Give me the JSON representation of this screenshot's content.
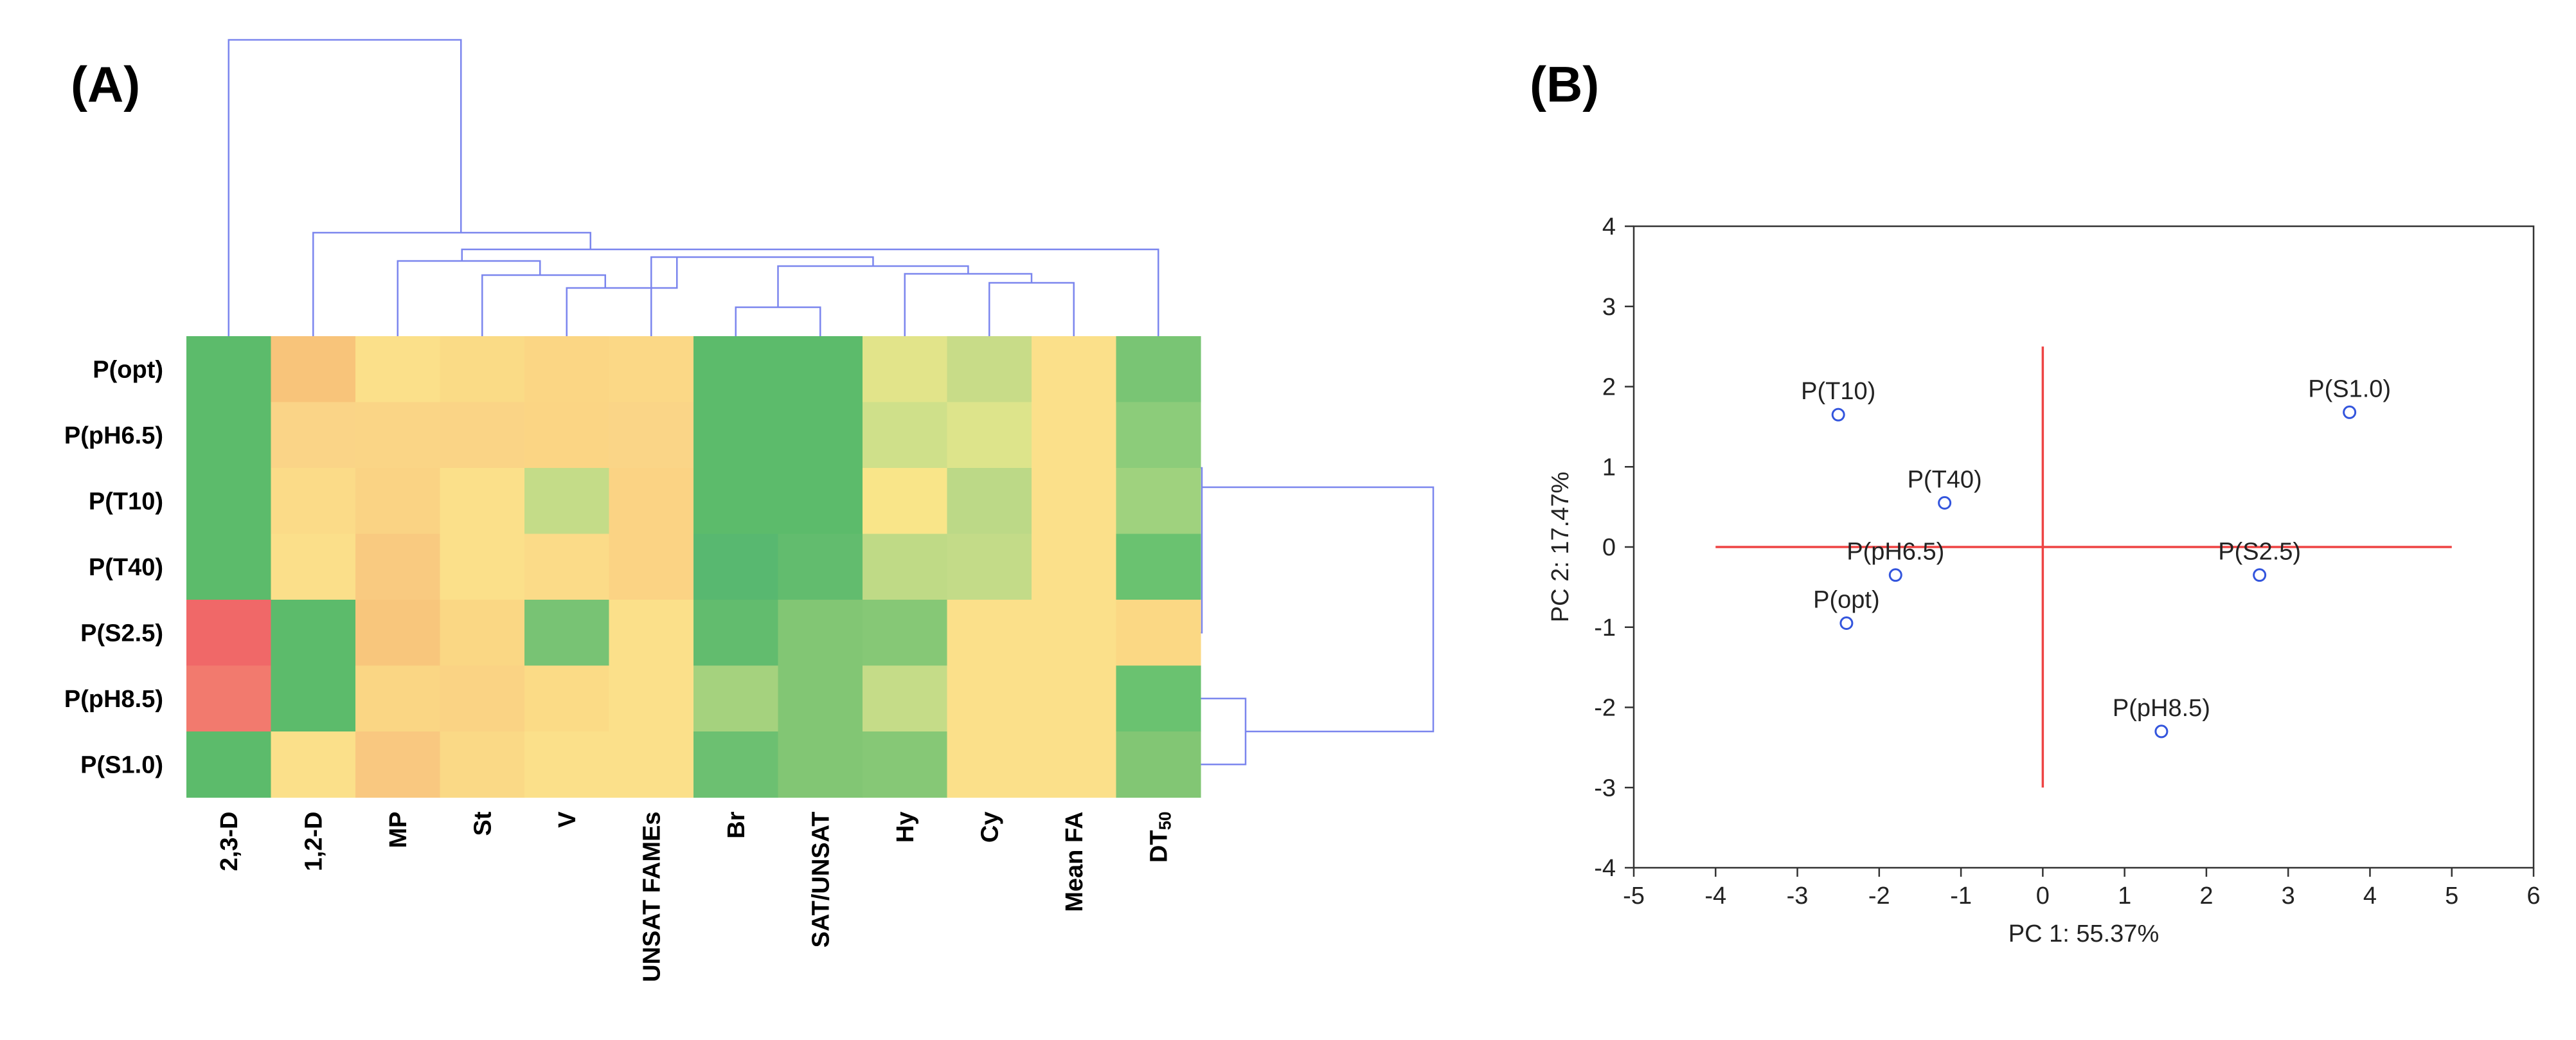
{
  "chart_data": [
    {
      "type": "heatmap",
      "panel_label": "(A)",
      "rows": [
        "P(opt)",
        "P(pH6.5)",
        "P(T10)",
        "P(T40)",
        "P(S2.5)",
        "P(pH8.5)",
        "P(S1.0)"
      ],
      "columns": [
        "2,3-D",
        "1,2-D",
        "MP",
        "St",
        "V",
        "UNSAT FAMEs",
        "Br",
        "SAT/UNSAT",
        "Hy",
        "Cy",
        "Mean FA",
        "DT50"
      ],
      "dt50_main": "DT",
      "dt50_sub": "50",
      "colors": [
        [
          "#5cbb6b",
          "#f8c47a",
          "#fbe08a",
          "#fadb86",
          "#fbd684",
          "#fbd886",
          "#5cbb6b",
          "#5cbb6b",
          "#e2e48a",
          "#c8dc88",
          "#fbe08a",
          "#79c574"
        ],
        [
          "#5cbb6b",
          "#fad487",
          "#fad586",
          "#fad486",
          "#fbd584",
          "#fad587",
          "#5cbb6b",
          "#5cbb6b",
          "#cfe08a",
          "#dde48b",
          "#fbe08a",
          "#8ccc7a"
        ],
        [
          "#5cbb6b",
          "#fbdb88",
          "#fad384",
          "#fbe08a",
          "#c4dc88",
          "#fbd384",
          "#5cbb6b",
          "#5cbb6b",
          "#f9e589",
          "#bcd987",
          "#fbe08a",
          "#9fd27e"
        ],
        [
          "#5cbb6b",
          "#fbdf8a",
          "#f9ca80",
          "#fbe08a",
          "#fbdb88",
          "#fbd384",
          "#58b870",
          "#62bc6e",
          "#bfda86",
          "#c3db88",
          "#fbe08a",
          "#6ac270"
        ],
        [
          "#f06868",
          "#5cbb6b",
          "#f8c67c",
          "#fad784",
          "#78c374",
          "#fbe08a",
          "#62bc6e",
          "#82c674",
          "#86c876",
          "#fbe08a",
          "#fbe08a",
          "#fbd884"
        ],
        [
          "#f27a6e",
          "#5cbb6b",
          "#fad684",
          "#fad384",
          "#fbdb86",
          "#fbe08a",
          "#a5d27e",
          "#82c674",
          "#c5dc88",
          "#fbe08a",
          "#fbe08a",
          "#6ac270"
        ],
        [
          "#5cbb6b",
          "#fbe08a",
          "#f9c880",
          "#fad986",
          "#fbe08a",
          "#fbe08a",
          "#6cc071",
          "#82c674",
          "#86c876",
          "#fbe08a",
          "#fbe08a",
          "#82c674"
        ]
      ]
    },
    {
      "type": "scatter",
      "panel_label": "(B)",
      "xlabel": "PC 1: 55.37%",
      "ylabel": "PC 2: 17.47%",
      "xlim": [
        -5,
        6
      ],
      "ylim": [
        -4,
        4
      ],
      "xticks": [
        -5,
        -4,
        -3,
        -2,
        -1,
        0,
        1,
        2,
        3,
        4,
        5,
        6
      ],
      "yticks": [
        4,
        3,
        2,
        1,
        0,
        -1,
        -2,
        -3,
        -4
      ],
      "axis_lines": {
        "horizontal_x": [
          -4,
          5
        ],
        "vertical_y": [
          -3,
          2.5
        ]
      },
      "points": [
        {
          "label": "P(T10)",
          "x": -2.5,
          "y": 1.65
        },
        {
          "label": "P(S1.0)",
          "x": 3.75,
          "y": 1.68
        },
        {
          "label": "P(T40)",
          "x": -1.2,
          "y": 0.55
        },
        {
          "label": "P(pH6.5)",
          "x": -1.8,
          "y": -0.35
        },
        {
          "label": "P(S2.5)",
          "x": 2.65,
          "y": -0.35
        },
        {
          "label": "P(opt)",
          "x": -2.4,
          "y": -0.95
        },
        {
          "label": "P(pH8.5)",
          "x": 1.45,
          "y": -2.3
        }
      ],
      "marker_color": "#3355dd",
      "axis_line_color": "#ee4444"
    }
  ],
  "colors": {
    "dendrogram": "#7b86ee",
    "frame": "#333333",
    "tick_text": "#222222"
  }
}
